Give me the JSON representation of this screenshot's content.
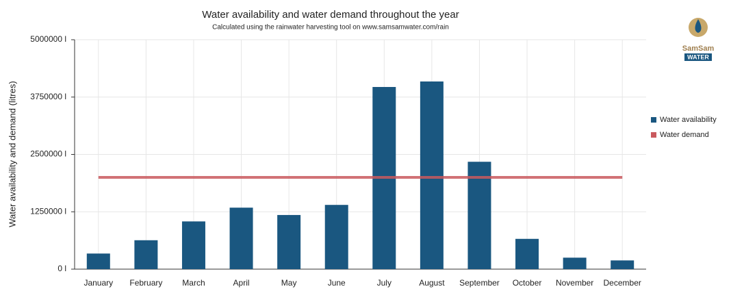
{
  "chart_data": {
    "type": "bar",
    "title": "Water availability and water demand throughout the year",
    "subtitle": "Calculated using the rainwater harvesting tool on www.samsamwater.com/rain",
    "y_label": "Water availability and demand (litres)",
    "logo": {
      "top": "SamSam",
      "bottom": "WATER"
    },
    "categories": [
      "January",
      "February",
      "March",
      "April",
      "May",
      "June",
      "July",
      "August",
      "September",
      "October",
      "November",
      "December"
    ],
    "series": [
      {
        "name": "Water availability",
        "type": "bar",
        "color": "#1a5780",
        "values": [
          340000,
          630000,
          1040000,
          1340000,
          1180000,
          1400000,
          3970000,
          4090000,
          2340000,
          660000,
          250000,
          190000
        ]
      },
      {
        "name": "Water demand",
        "type": "line",
        "color": "#c9595e",
        "values": [
          2000000,
          2000000,
          2000000,
          2000000,
          2000000,
          2000000,
          2000000,
          2000000,
          2000000,
          2000000,
          2000000,
          2000000
        ]
      }
    ],
    "ylim": [
      0,
      5000000
    ],
    "yticks": [
      {
        "value": 0,
        "label": "0 l"
      },
      {
        "value": 1250000,
        "label": "1250000 l"
      },
      {
        "value": 2500000,
        "label": "2500000 l"
      },
      {
        "value": 3750000,
        "label": "3750000 l"
      },
      {
        "value": 5000000,
        "label": "5000000 l"
      }
    ],
    "grid": true,
    "legend": "right"
  }
}
